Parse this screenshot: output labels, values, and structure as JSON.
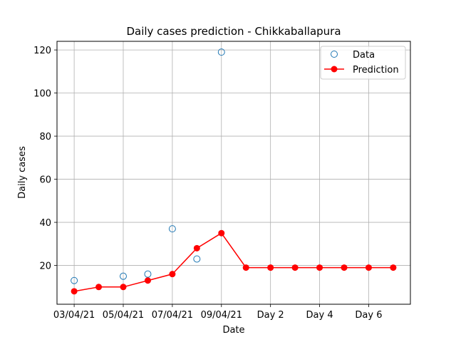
{
  "chart_data": {
    "type": "line",
    "title": "Daily cases prediction - Chikkaballapura",
    "xlabel": "Date",
    "ylabel": "Daily cases",
    "x_positions": [
      0,
      1,
      2,
      3,
      4,
      5,
      6,
      7,
      8,
      9,
      10,
      11,
      12,
      13
    ],
    "x_tick_positions": [
      0,
      2,
      4,
      6,
      8,
      10,
      12
    ],
    "x_tick_labels": [
      "03/04/21",
      "05/04/21",
      "07/04/21",
      "09/04/21",
      "Day 2",
      "Day 4",
      "Day 6"
    ],
    "xlim": [
      -0.7,
      13.7
    ],
    "ylim": [
      2,
      124
    ],
    "y_ticks": [
      20,
      40,
      60,
      80,
      100,
      120
    ],
    "grid": true,
    "legend_position": "upper right",
    "series": [
      {
        "name": "Data",
        "style": "open-circle-markers",
        "color": "#1f77b4",
        "x": [
          0,
          2,
          3,
          4,
          5,
          6
        ],
        "values": [
          13,
          15,
          16,
          37,
          23,
          119
        ]
      },
      {
        "name": "Prediction",
        "style": "line-with-filled-markers",
        "color": "#ff0000",
        "x": [
          0,
          1,
          2,
          3,
          4,
          5,
          6,
          7,
          8,
          9,
          10,
          11,
          12,
          13
        ],
        "values": [
          8,
          10,
          10,
          13,
          16,
          28,
          35,
          19,
          19,
          19,
          19,
          19,
          19,
          19
        ]
      }
    ]
  }
}
